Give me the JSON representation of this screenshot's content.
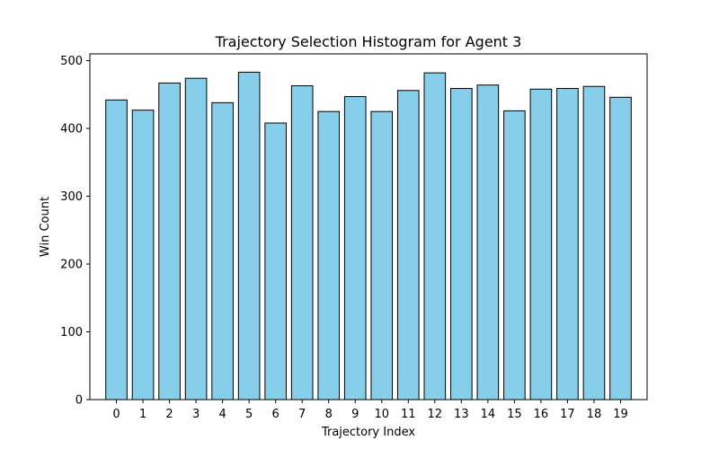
{
  "chart_data": {
    "type": "bar",
    "title": "Trajectory Selection Histogram for Agent 3",
    "xlabel": "Trajectory Index",
    "ylabel": "Win Count",
    "categories": [
      "0",
      "1",
      "2",
      "3",
      "4",
      "5",
      "6",
      "7",
      "8",
      "9",
      "10",
      "11",
      "12",
      "13",
      "14",
      "15",
      "16",
      "17",
      "18",
      "19"
    ],
    "values": [
      442,
      427,
      467,
      474,
      438,
      483,
      408,
      463,
      425,
      447,
      425,
      456,
      482,
      459,
      464,
      426,
      458,
      459,
      462,
      446
    ],
    "ylim": [
      0,
      510
    ],
    "yticks": [
      0,
      100,
      200,
      300,
      400,
      500
    ],
    "bar_color": "#87CEEB",
    "edge_color": "#000000",
    "grid": false,
    "legend": "none"
  }
}
